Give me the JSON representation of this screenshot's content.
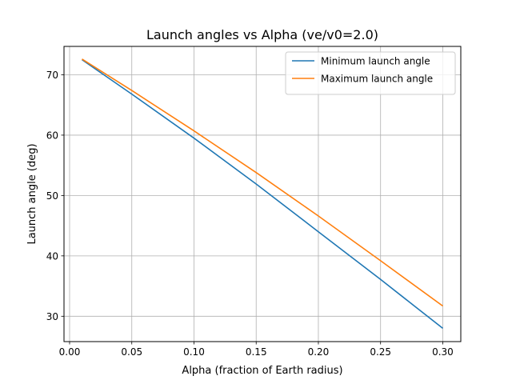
{
  "chart_data": {
    "type": "line",
    "title": "Launch angles vs Alpha (ve/v0=2.0)",
    "xlabel": "Alpha (fraction of Earth radius)",
    "ylabel": "Launch angle (deg)",
    "xlim": [
      -0.0045,
      0.3145
    ],
    "ylim": [
      25.8,
      74.7
    ],
    "xticks": [
      0.0,
      0.05,
      0.1,
      0.15,
      0.2,
      0.25,
      0.3
    ],
    "xtick_labels": [
      "0.00",
      "0.05",
      "0.10",
      "0.15",
      "0.20",
      "0.25",
      "0.30"
    ],
    "yticks": [
      30,
      40,
      50,
      60,
      70
    ],
    "ytick_labels": [
      "30",
      "40",
      "50",
      "60",
      "70"
    ],
    "grid": true,
    "legend_position": "top-right",
    "series": [
      {
        "name": "Minimum launch angle",
        "color": "#1f77b4",
        "x": [
          0.01,
          0.05,
          0.1,
          0.15,
          0.2,
          0.25,
          0.3
        ],
        "y": [
          72.5,
          66.8,
          59.5,
          51.9,
          44.0,
          36.1,
          28.0
        ]
      },
      {
        "name": "Maximum launch angle",
        "color": "#ff7f0e",
        "x": [
          0.01,
          0.05,
          0.1,
          0.15,
          0.2,
          0.25,
          0.3
        ],
        "y": [
          72.6,
          67.4,
          60.7,
          53.8,
          46.6,
          39.2,
          31.7
        ]
      }
    ]
  }
}
